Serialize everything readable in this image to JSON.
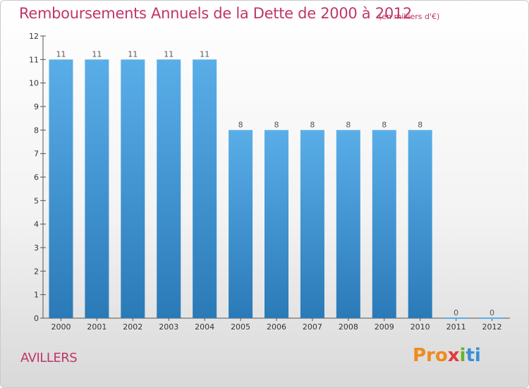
{
  "title": "Remboursements Annuels de la Dette de 2000 à 2012",
  "subtitle": "(en milliers d'€)",
  "place": "AVILLERS",
  "logo": {
    "p1": "Pro",
    "p2": "x",
    "p3": "i",
    "p4": "ti"
  },
  "colors": {
    "title": "#c0356a",
    "bar_top": "#5aaee8",
    "bar_bottom": "#2a7ab8"
  },
  "chart_data": {
    "type": "bar",
    "title": "Remboursements Annuels de la Dette de 2000 à 2012",
    "subtitle": "(en milliers d'€)",
    "categories": [
      "2000",
      "2001",
      "2002",
      "2003",
      "2004",
      "2005",
      "2006",
      "2007",
      "2008",
      "2009",
      "2010",
      "2011",
      "2012"
    ],
    "values": [
      11,
      11,
      11,
      11,
      11,
      8,
      8,
      8,
      8,
      8,
      8,
      0,
      0
    ],
    "ylim": [
      0,
      12
    ],
    "yticks": [
      0,
      1,
      2,
      3,
      4,
      5,
      6,
      7,
      8,
      9,
      10,
      11,
      12
    ],
    "xlabel": "",
    "ylabel": "",
    "grid": false,
    "data_labels": true
  }
}
